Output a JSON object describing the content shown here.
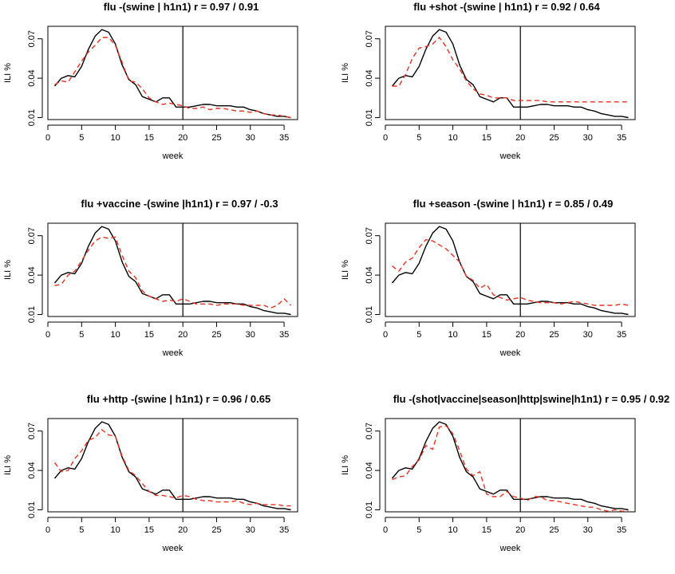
{
  "colors": {
    "observed": "#000000",
    "estimated": "#e8321e",
    "frame": "#000000"
  },
  "chart_data": [
    {
      "type": "line",
      "title": "flu -(swine | h1n1)   r =  0.97 / 0.91",
      "xlabel": "week",
      "ylabel": "ILI %",
      "xlim": [
        0,
        37
      ],
      "ylim": [
        0.0085,
        0.0795
      ],
      "xticks": [
        0,
        5,
        10,
        15,
        20,
        25,
        30,
        35
      ],
      "yticks": [
        0.01,
        0.04,
        0.07
      ],
      "ytick_labels": [
        "0.01",
        "0.04",
        "0.07"
      ],
      "vline": 20,
      "grid": false,
      "x": [
        1,
        2,
        3,
        4,
        5,
        6,
        7,
        8,
        9,
        10,
        11,
        12,
        13,
        14,
        15,
        16,
        17,
        18,
        19,
        20,
        21,
        22,
        23,
        24,
        25,
        26,
        27,
        28,
        29,
        30,
        31,
        32,
        33,
        34,
        35,
        36
      ],
      "series": [
        {
          "style": "solid",
          "color_key": "observed",
          "values": [
            0.034,
            0.04,
            0.042,
            0.041,
            0.049,
            0.062,
            0.072,
            0.077,
            0.075,
            0.066,
            0.05,
            0.039,
            0.035,
            0.026,
            0.024,
            0.022,
            0.025,
            0.025,
            0.018,
            0.018,
            0.018,
            0.019,
            0.02,
            0.02,
            0.019,
            0.019,
            0.019,
            0.018,
            0.018,
            0.016,
            0.015,
            0.013,
            0.012,
            0.011,
            0.011,
            0.01
          ]
        },
        {
          "style": "dashed",
          "color_key": "estimated",
          "values": [
            0.035,
            0.038,
            0.037,
            0.045,
            0.053,
            0.06,
            0.065,
            0.071,
            0.071,
            0.065,
            0.052,
            0.038,
            0.037,
            0.032,
            0.025,
            0.022,
            0.02,
            0.021,
            0.02,
            0.019,
            0.017,
            0.017,
            0.018,
            0.016,
            0.017,
            0.017,
            0.016,
            0.015,
            0.015,
            0.014,
            0.015,
            0.013,
            0.012,
            0.012,
            0.011,
            0.01
          ]
        }
      ]
    },
    {
      "type": "line",
      "title": "flu +shot -(swine | h1n1)   r =  0.92 / 0.64",
      "xlabel": "week",
      "ylabel": "ILI %",
      "xlim": [
        0,
        37
      ],
      "ylim": [
        0.0085,
        0.0795
      ],
      "xticks": [
        0,
        5,
        10,
        15,
        20,
        25,
        30,
        35
      ],
      "yticks": [
        0.01,
        0.04,
        0.07
      ],
      "ytick_labels": [
        "0.01",
        "0.04",
        "0.07"
      ],
      "vline": 20,
      "grid": false,
      "x": [
        1,
        2,
        3,
        4,
        5,
        6,
        7,
        8,
        9,
        10,
        11,
        12,
        13,
        14,
        15,
        16,
        17,
        18,
        19,
        20,
        21,
        22,
        23,
        24,
        25,
        26,
        27,
        28,
        29,
        30,
        31,
        32,
        33,
        34,
        35,
        36
      ],
      "series": [
        {
          "style": "solid",
          "color_key": "observed",
          "values": [
            0.034,
            0.04,
            0.042,
            0.041,
            0.049,
            0.062,
            0.072,
            0.077,
            0.075,
            0.066,
            0.05,
            0.039,
            0.035,
            0.026,
            0.024,
            0.022,
            0.025,
            0.025,
            0.018,
            0.018,
            0.018,
            0.019,
            0.02,
            0.02,
            0.019,
            0.019,
            0.019,
            0.018,
            0.018,
            0.016,
            0.015,
            0.013,
            0.012,
            0.011,
            0.011,
            0.01
          ]
        },
        {
          "style": "dashed",
          "color_key": "estimated",
          "values": [
            0.034,
            0.034,
            0.043,
            0.055,
            0.063,
            0.064,
            0.066,
            0.071,
            0.064,
            0.054,
            0.047,
            0.038,
            0.032,
            0.028,
            0.027,
            0.025,
            0.025,
            0.025,
            0.023,
            0.023,
            0.023,
            0.023,
            0.023,
            0.022,
            0.022,
            0.022,
            0.022,
            0.022,
            0.022,
            0.022,
            0.022,
            0.022,
            0.022,
            0.022,
            0.022,
            0.022
          ]
        }
      ]
    },
    {
      "type": "line",
      "title": "flu +vaccine -(swine |h1n1)   r =  0.97 / -0.3",
      "xlabel": "week",
      "ylabel": "ILI %",
      "xlim": [
        0,
        37
      ],
      "ylim": [
        0.0085,
        0.0795
      ],
      "xticks": [
        0,
        5,
        10,
        15,
        20,
        25,
        30,
        35
      ],
      "yticks": [
        0.01,
        0.04,
        0.07
      ],
      "ytick_labels": [
        "0.01",
        "0.04",
        "0.07"
      ],
      "vline": 20,
      "grid": false,
      "x": [
        1,
        2,
        3,
        4,
        5,
        6,
        7,
        8,
        9,
        10,
        11,
        12,
        13,
        14,
        15,
        16,
        17,
        18,
        19,
        20,
        21,
        22,
        23,
        24,
        25,
        26,
        27,
        28,
        29,
        30,
        31,
        32,
        33,
        34,
        35,
        36
      ],
      "series": [
        {
          "style": "solid",
          "color_key": "observed",
          "values": [
            0.034,
            0.04,
            0.042,
            0.041,
            0.049,
            0.062,
            0.072,
            0.077,
            0.075,
            0.066,
            0.05,
            0.039,
            0.035,
            0.026,
            0.024,
            0.022,
            0.025,
            0.025,
            0.018,
            0.018,
            0.018,
            0.019,
            0.02,
            0.02,
            0.019,
            0.019,
            0.019,
            0.018,
            0.018,
            0.016,
            0.015,
            0.013,
            0.012,
            0.011,
            0.011,
            0.01
          ]
        },
        {
          "style": "dashed",
          "color_key": "estimated",
          "values": [
            0.032,
            0.033,
            0.04,
            0.043,
            0.051,
            0.059,
            0.066,
            0.069,
            0.068,
            0.069,
            0.055,
            0.043,
            0.038,
            0.028,
            0.024,
            0.022,
            0.02,
            0.021,
            0.02,
            0.022,
            0.02,
            0.018,
            0.018,
            0.018,
            0.017,
            0.018,
            0.018,
            0.018,
            0.017,
            0.017,
            0.017,
            0.017,
            0.015,
            0.017,
            0.022,
            0.017
          ]
        }
      ]
    },
    {
      "type": "line",
      "title": "flu +season -(swine | h1n1)   r =  0.85 / 0.49",
      "xlabel": "week",
      "ylabel": "ILI %",
      "xlim": [
        0,
        37
      ],
      "ylim": [
        0.0085,
        0.0795
      ],
      "xticks": [
        0,
        5,
        10,
        15,
        20,
        25,
        30,
        35
      ],
      "yticks": [
        0.01,
        0.04,
        0.07
      ],
      "ytick_labels": [
        "0.01",
        "0.04",
        "0.07"
      ],
      "vline": 20,
      "grid": false,
      "x": [
        1,
        2,
        3,
        4,
        5,
        6,
        7,
        8,
        9,
        10,
        11,
        12,
        13,
        14,
        15,
        16,
        17,
        18,
        19,
        20,
        21,
        22,
        23,
        24,
        25,
        26,
        27,
        28,
        29,
        30,
        31,
        32,
        33,
        34,
        35,
        36
      ],
      "series": [
        {
          "style": "solid",
          "color_key": "observed",
          "values": [
            0.034,
            0.04,
            0.042,
            0.041,
            0.049,
            0.062,
            0.072,
            0.077,
            0.075,
            0.066,
            0.05,
            0.039,
            0.035,
            0.026,
            0.024,
            0.022,
            0.025,
            0.025,
            0.018,
            0.018,
            0.018,
            0.019,
            0.02,
            0.02,
            0.019,
            0.019,
            0.019,
            0.018,
            0.018,
            0.016,
            0.015,
            0.013,
            0.012,
            0.011,
            0.011,
            0.01
          ]
        },
        {
          "style": "dashed",
          "color_key": "estimated",
          "values": [
            0.047,
            0.043,
            0.05,
            0.053,
            0.061,
            0.067,
            0.066,
            0.063,
            0.06,
            0.055,
            0.05,
            0.039,
            0.036,
            0.03,
            0.033,
            0.025,
            0.023,
            0.021,
            0.022,
            0.023,
            0.021,
            0.02,
            0.019,
            0.019,
            0.019,
            0.018,
            0.019,
            0.02,
            0.019,
            0.018,
            0.017,
            0.017,
            0.017,
            0.017,
            0.018,
            0.017
          ]
        }
      ]
    },
    {
      "type": "line",
      "title": "flu +http -(swine | h1n1)   r =  0.96 / 0.65",
      "xlabel": "week",
      "ylabel": "ILI %",
      "xlim": [
        0,
        37
      ],
      "ylim": [
        0.0085,
        0.0795
      ],
      "xticks": [
        0,
        5,
        10,
        15,
        20,
        25,
        30,
        35
      ],
      "yticks": [
        0.01,
        0.04,
        0.07
      ],
      "ytick_labels": [
        "0.01",
        "0.04",
        "0.07"
      ],
      "vline": 20,
      "grid": false,
      "x": [
        1,
        2,
        3,
        4,
        5,
        6,
        7,
        8,
        9,
        10,
        11,
        12,
        13,
        14,
        15,
        16,
        17,
        18,
        19,
        20,
        21,
        22,
        23,
        24,
        25,
        26,
        27,
        28,
        29,
        30,
        31,
        32,
        33,
        34,
        35,
        36
      ],
      "series": [
        {
          "style": "solid",
          "color_key": "observed",
          "values": [
            0.034,
            0.04,
            0.042,
            0.041,
            0.049,
            0.062,
            0.072,
            0.077,
            0.075,
            0.066,
            0.05,
            0.039,
            0.035,
            0.026,
            0.024,
            0.022,
            0.025,
            0.025,
            0.018,
            0.018,
            0.018,
            0.019,
            0.02,
            0.02,
            0.019,
            0.019,
            0.019,
            0.018,
            0.018,
            0.016,
            0.015,
            0.013,
            0.012,
            0.011,
            0.011,
            0.01
          ]
        },
        {
          "style": "dashed",
          "color_key": "estimated",
          "values": [
            0.046,
            0.039,
            0.04,
            0.049,
            0.055,
            0.063,
            0.065,
            0.071,
            0.067,
            0.066,
            0.051,
            0.04,
            0.036,
            0.03,
            0.024,
            0.021,
            0.021,
            0.02,
            0.019,
            0.021,
            0.02,
            0.018,
            0.017,
            0.017,
            0.016,
            0.016,
            0.016,
            0.017,
            0.015,
            0.014,
            0.015,
            0.014,
            0.014,
            0.014,
            0.013,
            0.013
          ]
        }
      ]
    },
    {
      "type": "line",
      "title": "flu -(shot|vaccine|season|http|swine|h1n1)   r =  0.95 / 0.92",
      "xlabel": "week",
      "ylabel": "ILI %",
      "xlim": [
        0,
        37
      ],
      "ylim": [
        0.0085,
        0.0795
      ],
      "xticks": [
        0,
        5,
        10,
        15,
        20,
        25,
        30,
        35
      ],
      "yticks": [
        0.01,
        0.04,
        0.07
      ],
      "ytick_labels": [
        "0.01",
        "0.04",
        "0.07"
      ],
      "vline": 20,
      "grid": false,
      "x": [
        1,
        2,
        3,
        4,
        5,
        6,
        7,
        8,
        9,
        10,
        11,
        12,
        13,
        14,
        15,
        16,
        17,
        18,
        19,
        20,
        21,
        22,
        23,
        24,
        25,
        26,
        27,
        28,
        29,
        30,
        31,
        32,
        33,
        34,
        35,
        36
      ],
      "series": [
        {
          "style": "solid",
          "color_key": "observed",
          "values": [
            0.034,
            0.04,
            0.042,
            0.041,
            0.049,
            0.062,
            0.072,
            0.077,
            0.075,
            0.066,
            0.05,
            0.039,
            0.035,
            0.026,
            0.024,
            0.022,
            0.025,
            0.025,
            0.018,
            0.018,
            0.018,
            0.019,
            0.02,
            0.02,
            0.019,
            0.019,
            0.019,
            0.018,
            0.018,
            0.016,
            0.015,
            0.013,
            0.012,
            0.011,
            0.011,
            0.01
          ]
        },
        {
          "style": "dashed",
          "color_key": "estimated",
          "values": [
            0.033,
            0.035,
            0.036,
            0.043,
            0.048,
            0.059,
            0.056,
            0.073,
            0.074,
            0.068,
            0.055,
            0.041,
            0.036,
            0.039,
            0.022,
            0.02,
            0.02,
            0.024,
            0.02,
            0.019,
            0.017,
            0.02,
            0.02,
            0.017,
            0.017,
            0.016,
            0.015,
            0.014,
            0.013,
            0.012,
            0.012,
            0.01,
            0.009,
            0.01,
            0.009,
            0.009
          ]
        }
      ]
    }
  ]
}
